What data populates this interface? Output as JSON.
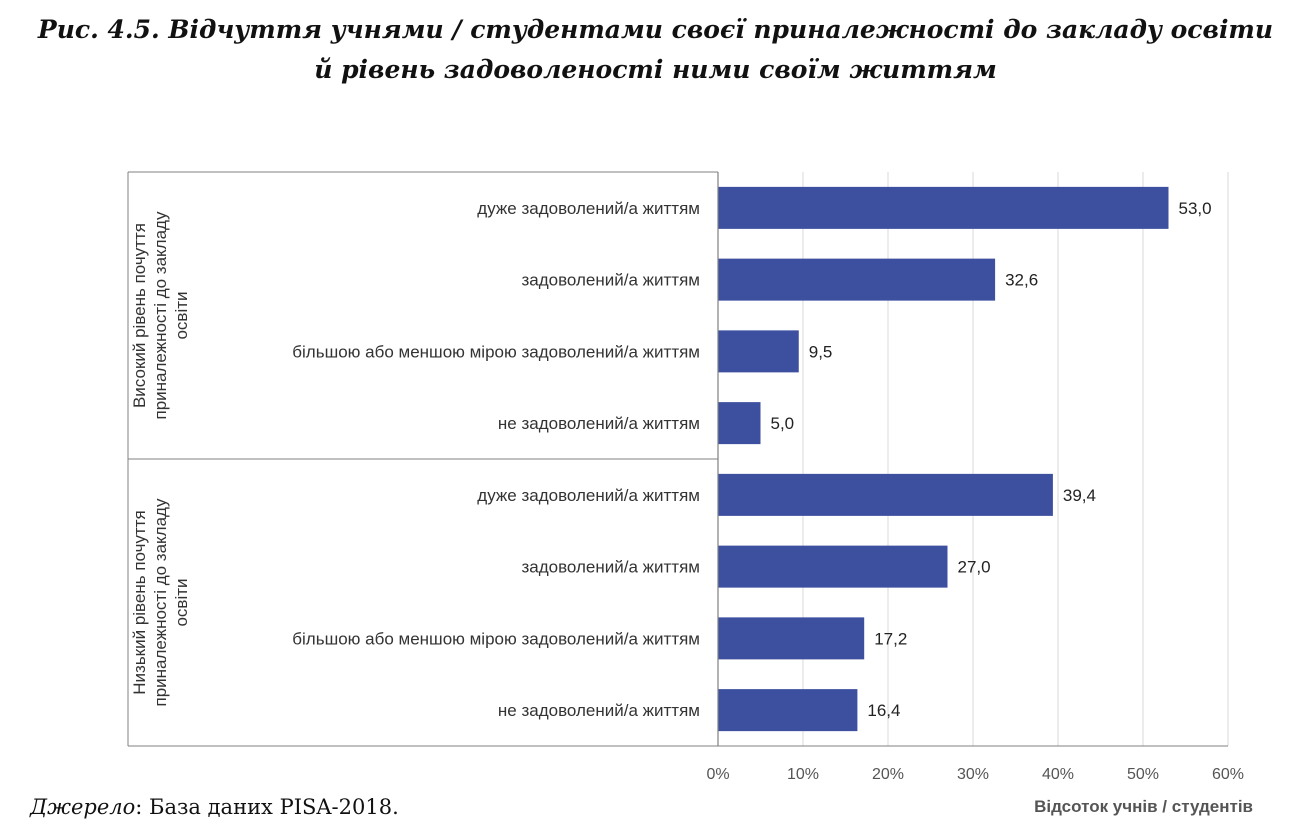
{
  "title_line1": "Рис. 4.5. Відчуття учнями / студентами своєї приналежності до закладу освіти",
  "title_line2": "й рівень задоволеності ними своїм життям",
  "source": {
    "label": "Джерело",
    "text": ": База даних PISA-2018."
  },
  "chart_data": {
    "type": "bar",
    "orientation": "horizontal",
    "title": "Рис. 4.5. Відчуття учнями / студентами своєї приналежності до закладу освіти й рівень задоволеності ними своїм життям",
    "xlabel": "Відсоток учнів / студентів",
    "xlim": [
      0,
      60
    ],
    "xticks": [
      "0%",
      "10%",
      "20%",
      "30%",
      "40%",
      "50%",
      "60%"
    ],
    "grid": "vertical",
    "bar_color": "#3d4f9f",
    "groups": [
      {
        "label_lines": [
          "Високий рівень почуття",
          "приналежності до закладу",
          "освіти"
        ],
        "categories": [
          "дуже задоволений/а життям",
          "задоволений/а життям",
          "більшою або меншою мірою задоволений/а життям",
          "не задоволений/а життям"
        ],
        "values": [
          53.0,
          32.6,
          9.5,
          5.0
        ],
        "value_labels": [
          "53,0",
          "32,6",
          "9,5",
          "5,0"
        ]
      },
      {
        "label_lines": [
          "Низький рівень почуття",
          "приналежності до закладу",
          "освіти"
        ],
        "categories": [
          "дуже задоволений/а життям",
          "задоволений/а життям",
          "більшою або меншою мірою задоволений/а життям",
          "не задоволений/а життям"
        ],
        "values": [
          39.4,
          27.0,
          17.2,
          16.4
        ],
        "value_labels": [
          "39,4",
          "27,0",
          "17,2",
          "16,4"
        ]
      }
    ]
  }
}
